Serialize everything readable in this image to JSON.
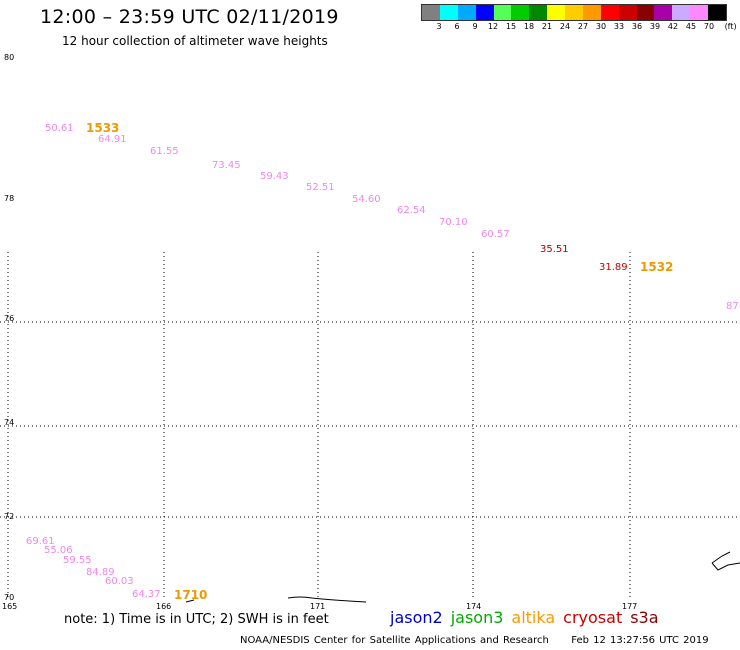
{
  "title": "12:00 – 23:59 UTC 02/11/2019",
  "subtitle": "12 hour collection of altimeter wave heights",
  "legend": {
    "colors": [
      "#808080",
      "#00ffff",
      "#00aaff",
      "#0000ff",
      "#55ff55",
      "#00cc00",
      "#008800",
      "#ffff00",
      "#ffcc00",
      "#ff9900",
      "#ff0000",
      "#cc0000",
      "#880000",
      "#aa00aa",
      "#ccaaff",
      "#ff88ff",
      "#000000"
    ],
    "labels": [
      "3",
      "6",
      "9",
      "12",
      "15",
      "18",
      "21",
      "24",
      "27",
      "30",
      "33",
      "36",
      "39",
      "42",
      "45",
      "70"
    ],
    "unit": "(ft)"
  },
  "axes": {
    "lat_labels": [
      "80",
      "78",
      "76",
      "74",
      "72",
      "70"
    ],
    "lon_labels": [
      "165",
      "166",
      "171",
      "174",
      "177"
    ]
  },
  "wave_heights": [
    {
      "text": "50.61",
      "color": "#ee88ee"
    },
    {
      "text": "64.91",
      "color": "#ee88ee"
    },
    {
      "text": "61.55",
      "color": "#ee88ee"
    },
    {
      "text": "73.45",
      "color": "#ee88ee"
    },
    {
      "text": "59.43",
      "color": "#ee88ee"
    },
    {
      "text": "52.51",
      "color": "#ee88ee"
    },
    {
      "text": "54.60",
      "color": "#ee88ee"
    },
    {
      "text": "62.54",
      "color": "#ee88ee"
    },
    {
      "text": "70.10",
      "color": "#ee88ee"
    },
    {
      "text": "60.57",
      "color": "#ee88ee"
    },
    {
      "text": "35.51",
      "color": "#aa0000"
    },
    {
      "text": "31.89",
      "color": "#cc0000"
    },
    {
      "text": "87",
      "color": "#ee88ee"
    },
    {
      "text": "69.61",
      "color": "#ee88ee"
    },
    {
      "text": "55.06",
      "color": "#ee88ee"
    },
    {
      "text": "59.55",
      "color": "#ee88ee"
    },
    {
      "text": "84.89",
      "color": "#ee88ee"
    },
    {
      "text": "60.03",
      "color": "#ee88ee"
    },
    {
      "text": "64.37",
      "color": "#ee88ee"
    }
  ],
  "pass_times": [
    {
      "text": "1533",
      "color": "#ee9900"
    },
    {
      "text": "1532",
      "color": "#ee9900"
    },
    {
      "text": "1710",
      "color": "#ee9900"
    }
  ],
  "note": "note: 1) Time is in UTC; 2) SWH is in feet",
  "satellites": [
    {
      "name": "jason2",
      "color": "#0000cc"
    },
    {
      "name": "jason3",
      "color": "#00aa00"
    },
    {
      "name": "altika",
      "color": "#ff9900"
    },
    {
      "name": "cryosat",
      "color": "#cc0000"
    },
    {
      "name": "s3a",
      "color": "#880000"
    }
  ],
  "footer": {
    "org": "NOAA/NESDIS Center for Satellite Applications and Research",
    "timestamp": "Feb 12 13:27:56 UTC 2019"
  }
}
